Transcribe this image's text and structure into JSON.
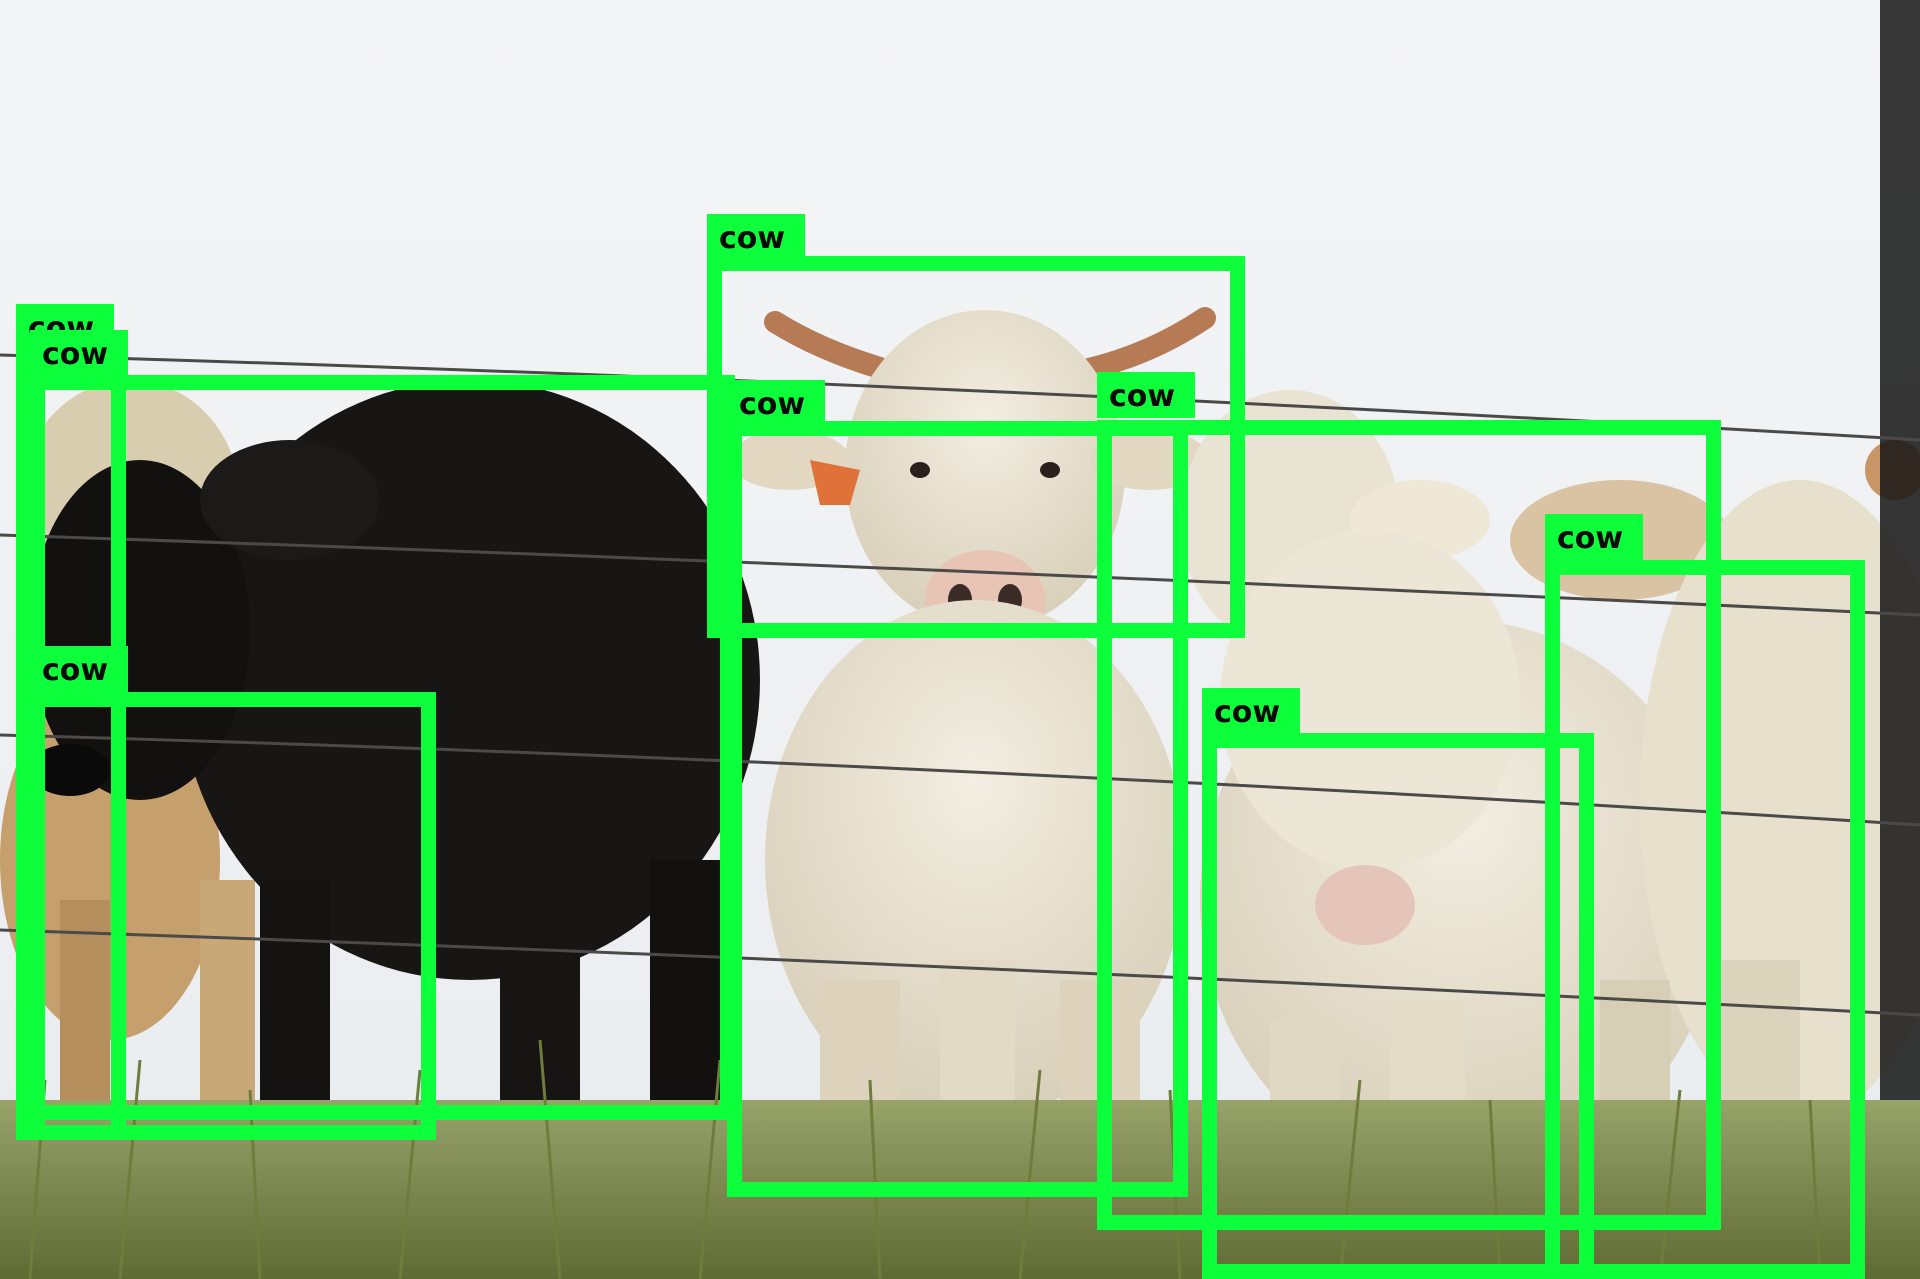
{
  "image": {
    "description_colors": {
      "sky": "#eef0f3",
      "grass": "#7d8a4a",
      "black_cow": "#141312",
      "white_cow": "#e8e1cf",
      "detection_box": "#0dff3c",
      "label_text": "#0a0a0a"
    }
  },
  "detections": [
    {
      "label": "cow"
    },
    {
      "label": "cow"
    },
    {
      "label": "cow"
    },
    {
      "label": "cow"
    },
    {
      "label": "cow"
    },
    {
      "label": "cow"
    },
    {
      "label": "cow"
    },
    {
      "label": "cow"
    },
    {
      "label": "cow"
    }
  ]
}
